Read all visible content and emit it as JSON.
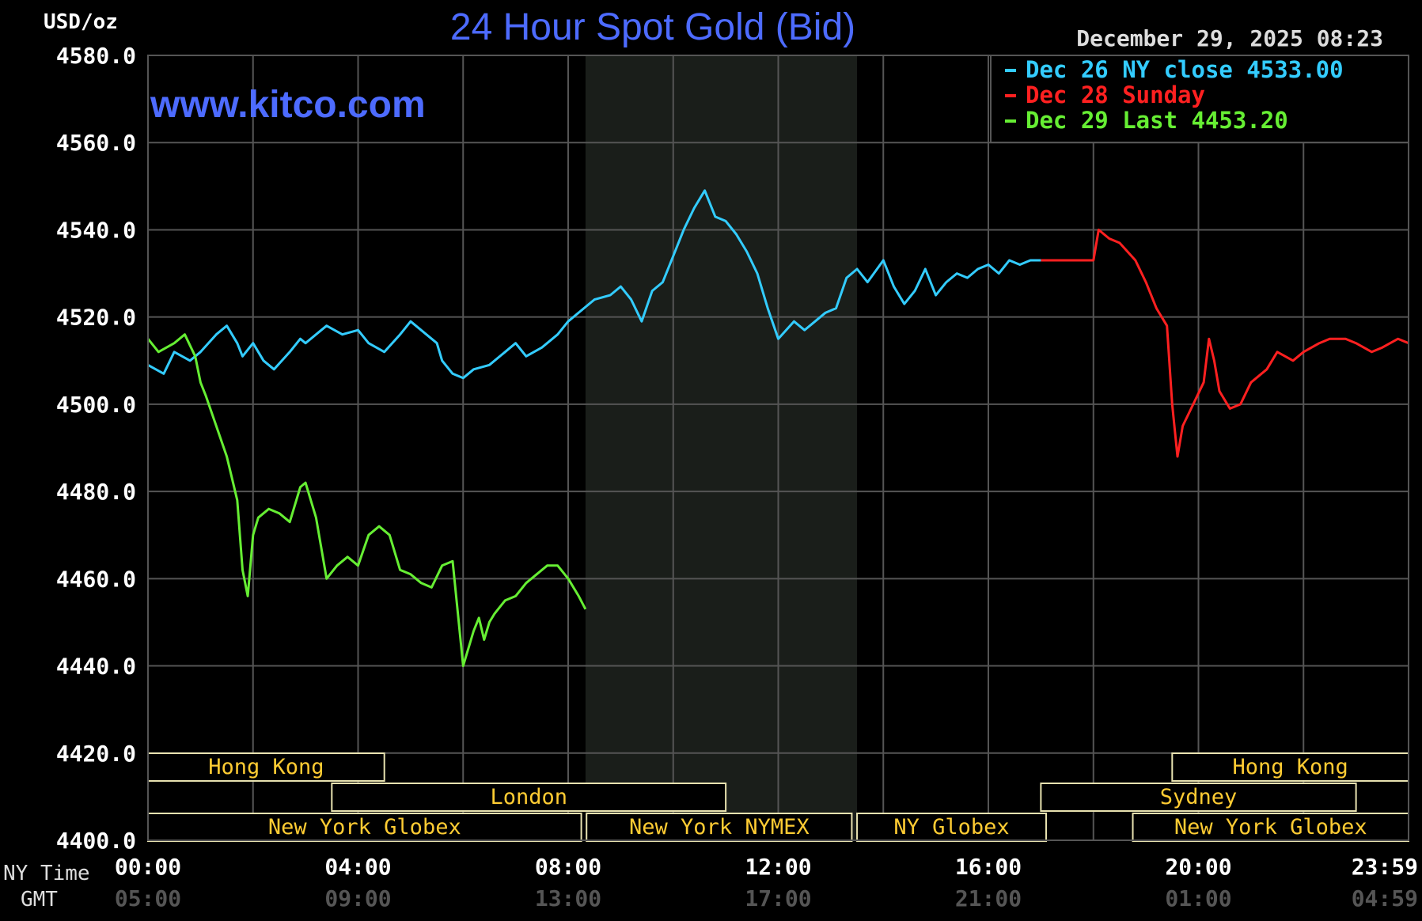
{
  "chart_data": {
    "type": "line",
    "title": "24 Hour Spot Gold (Bid)",
    "ylabel": "USD/oz",
    "watermark": "www.kitco.com",
    "timestamp": "December 29, 2025 08:23",
    "ylim": [
      4400,
      4580
    ],
    "yticks": [
      "4580.0",
      "4560.0",
      "4540.0",
      "4520.0",
      "4500.0",
      "4480.0",
      "4460.0",
      "4440.0",
      "4420.0",
      "4400.0"
    ],
    "x_axis": {
      "ny_label": "NY Time",
      "gmt_label": "GMT",
      "ny_ticks": [
        "00:00",
        "04:00",
        "08:00",
        "12:00",
        "16:00",
        "20:00",
        "23:59"
      ],
      "gmt_ticks": [
        "05:00",
        "09:00",
        "13:00",
        "17:00",
        "21:00",
        "01:00",
        "04:59"
      ]
    },
    "nymex_shade_hours": [
      8.33,
      13.5
    ],
    "legend": {
      "position": "top-right",
      "items": [
        {
          "text": "Dec 26 NY close 4533.00",
          "color": "#33ccff"
        },
        {
          "text": "Dec 28 Sunday",
          "color": "#ff2020"
        },
        {
          "text": "Dec 29 Last 4453.20",
          "color": "#66ee33"
        }
      ]
    },
    "sessions": [
      {
        "label": "Hong Kong",
        "start": 0,
        "end": 4.5,
        "row": 0
      },
      {
        "label": "Hong Kong",
        "start": 19.5,
        "end": 24,
        "row": 0
      },
      {
        "label": "London",
        "start": 3.5,
        "end": 11,
        "row": 1
      },
      {
        "label": "Sydney",
        "start": 17,
        "end": 23,
        "row": 1
      },
      {
        "label": "New York Globex",
        "start": 0,
        "end": 8.25,
        "row": 2
      },
      {
        "label": "New York NYMEX",
        "start": 8.35,
        "end": 13.4,
        "row": 2
      },
      {
        "label": "NY Globex",
        "start": 13.5,
        "end": 17.1,
        "row": 2
      },
      {
        "label": "New York Globex",
        "start": 18.75,
        "end": 24,
        "row": 2
      }
    ],
    "series": [
      {
        "name": "Dec 26 NY close 4533.00",
        "color": "#33ccff",
        "x": [
          0,
          0.3,
          0.5,
          0.8,
          1.0,
          1.3,
          1.5,
          1.7,
          1.8,
          2.0,
          2.2,
          2.4,
          2.7,
          2.9,
          3.0,
          3.2,
          3.4,
          3.7,
          4.0,
          4.2,
          4.5,
          4.8,
          5.0,
          5.3,
          5.5,
          5.6,
          5.8,
          6.0,
          6.2,
          6.5,
          6.8,
          7.0,
          7.2,
          7.5,
          7.8,
          8.0,
          8.3,
          8.5,
          8.8,
          9.0,
          9.2,
          9.4,
          9.6,
          9.8,
          10.0,
          10.2,
          10.4,
          10.6,
          10.8,
          11.0,
          11.2,
          11.4,
          11.6,
          11.8,
          12.0,
          12.3,
          12.5,
          12.7,
          12.9,
          13.1,
          13.3,
          13.5,
          13.7,
          14.0,
          14.2,
          14.4,
          14.6,
          14.8,
          15.0,
          15.2,
          15.4,
          15.6,
          15.8,
          16.0,
          16.2,
          16.4,
          16.6,
          16.8,
          17.0
        ],
        "y": [
          4509,
          4507,
          4512,
          4510,
          4512,
          4516,
          4518,
          4514,
          4511,
          4514,
          4510,
          4508,
          4512,
          4515,
          4514,
          4516,
          4518,
          4516,
          4517,
          4514,
          4512,
          4516,
          4519,
          4516,
          4514,
          4510,
          4507,
          4506,
          4508,
          4509,
          4512,
          4514,
          4511,
          4513,
          4516,
          4519,
          4522,
          4524,
          4525,
          4527,
          4524,
          4519,
          4526,
          4528,
          4534,
          4540,
          4545,
          4549,
          4543,
          4542,
          4539,
          4535,
          4530,
          4522,
          4515,
          4519,
          4517,
          4519,
          4521,
          4522,
          4529,
          4531,
          4528,
          4533,
          4527,
          4523,
          4526,
          4531,
          4525,
          4528,
          4530,
          4529,
          4531,
          4532,
          4530,
          4533,
          4532,
          4533,
          4533
        ]
      },
      {
        "name": "Dec 28 Sunday",
        "color": "#ff2020",
        "x": [
          17.0,
          17.3,
          17.7,
          18.0,
          18.1,
          18.3,
          18.5,
          18.8,
          19.0,
          19.2,
          19.4,
          19.5,
          19.6,
          19.7,
          19.9,
          20.1,
          20.2,
          20.3,
          20.4,
          20.6,
          20.8,
          21.0,
          21.3,
          21.5,
          21.8,
          22.0,
          22.3,
          22.5,
          22.8,
          23.0,
          23.3,
          23.5,
          23.8,
          24.0
        ],
        "y": [
          4533,
          4533,
          4533,
          4533,
          4540,
          4538,
          4537,
          4533,
          4528,
          4522,
          4518,
          4500,
          4488,
          4495,
          4500,
          4505,
          4515,
          4510,
          4503,
          4499,
          4500,
          4505,
          4508,
          4512,
          4510,
          4512,
          4514,
          4515,
          4515,
          4514,
          4512,
          4513,
          4515,
          4514
        ]
      },
      {
        "name": "Dec 29 Last 4453.20",
        "color": "#66ee33",
        "x": [
          0,
          0.2,
          0.5,
          0.7,
          0.9,
          1.0,
          1.1,
          1.3,
          1.5,
          1.7,
          1.8,
          1.9,
          2.0,
          2.1,
          2.3,
          2.5,
          2.7,
          2.9,
          3.0,
          3.2,
          3.4,
          3.6,
          3.8,
          4.0,
          4.2,
          4.4,
          4.6,
          4.8,
          5.0,
          5.2,
          5.4,
          5.6,
          5.8,
          6.0,
          6.2,
          6.3,
          6.4,
          6.5,
          6.6,
          6.8,
          7.0,
          7.2,
          7.4,
          7.6,
          7.8,
          8.0,
          8.2,
          8.33
        ],
        "y": [
          4515,
          4512,
          4514,
          4516,
          4511,
          4505,
          4502,
          4495,
          4488,
          4478,
          4462,
          4456,
          4470,
          4474,
          4476,
          4475,
          4473,
          4481,
          4482,
          4474,
          4460,
          4463,
          4465,
          4463,
          4470,
          4472,
          4470,
          4462,
          4461,
          4459,
          4458,
          4463,
          4464,
          4440,
          4448,
          4451,
          4446,
          4450,
          4452,
          4455,
          4456,
          4459,
          4461,
          4463,
          4463,
          4460,
          4456,
          4453
        ]
      }
    ]
  }
}
